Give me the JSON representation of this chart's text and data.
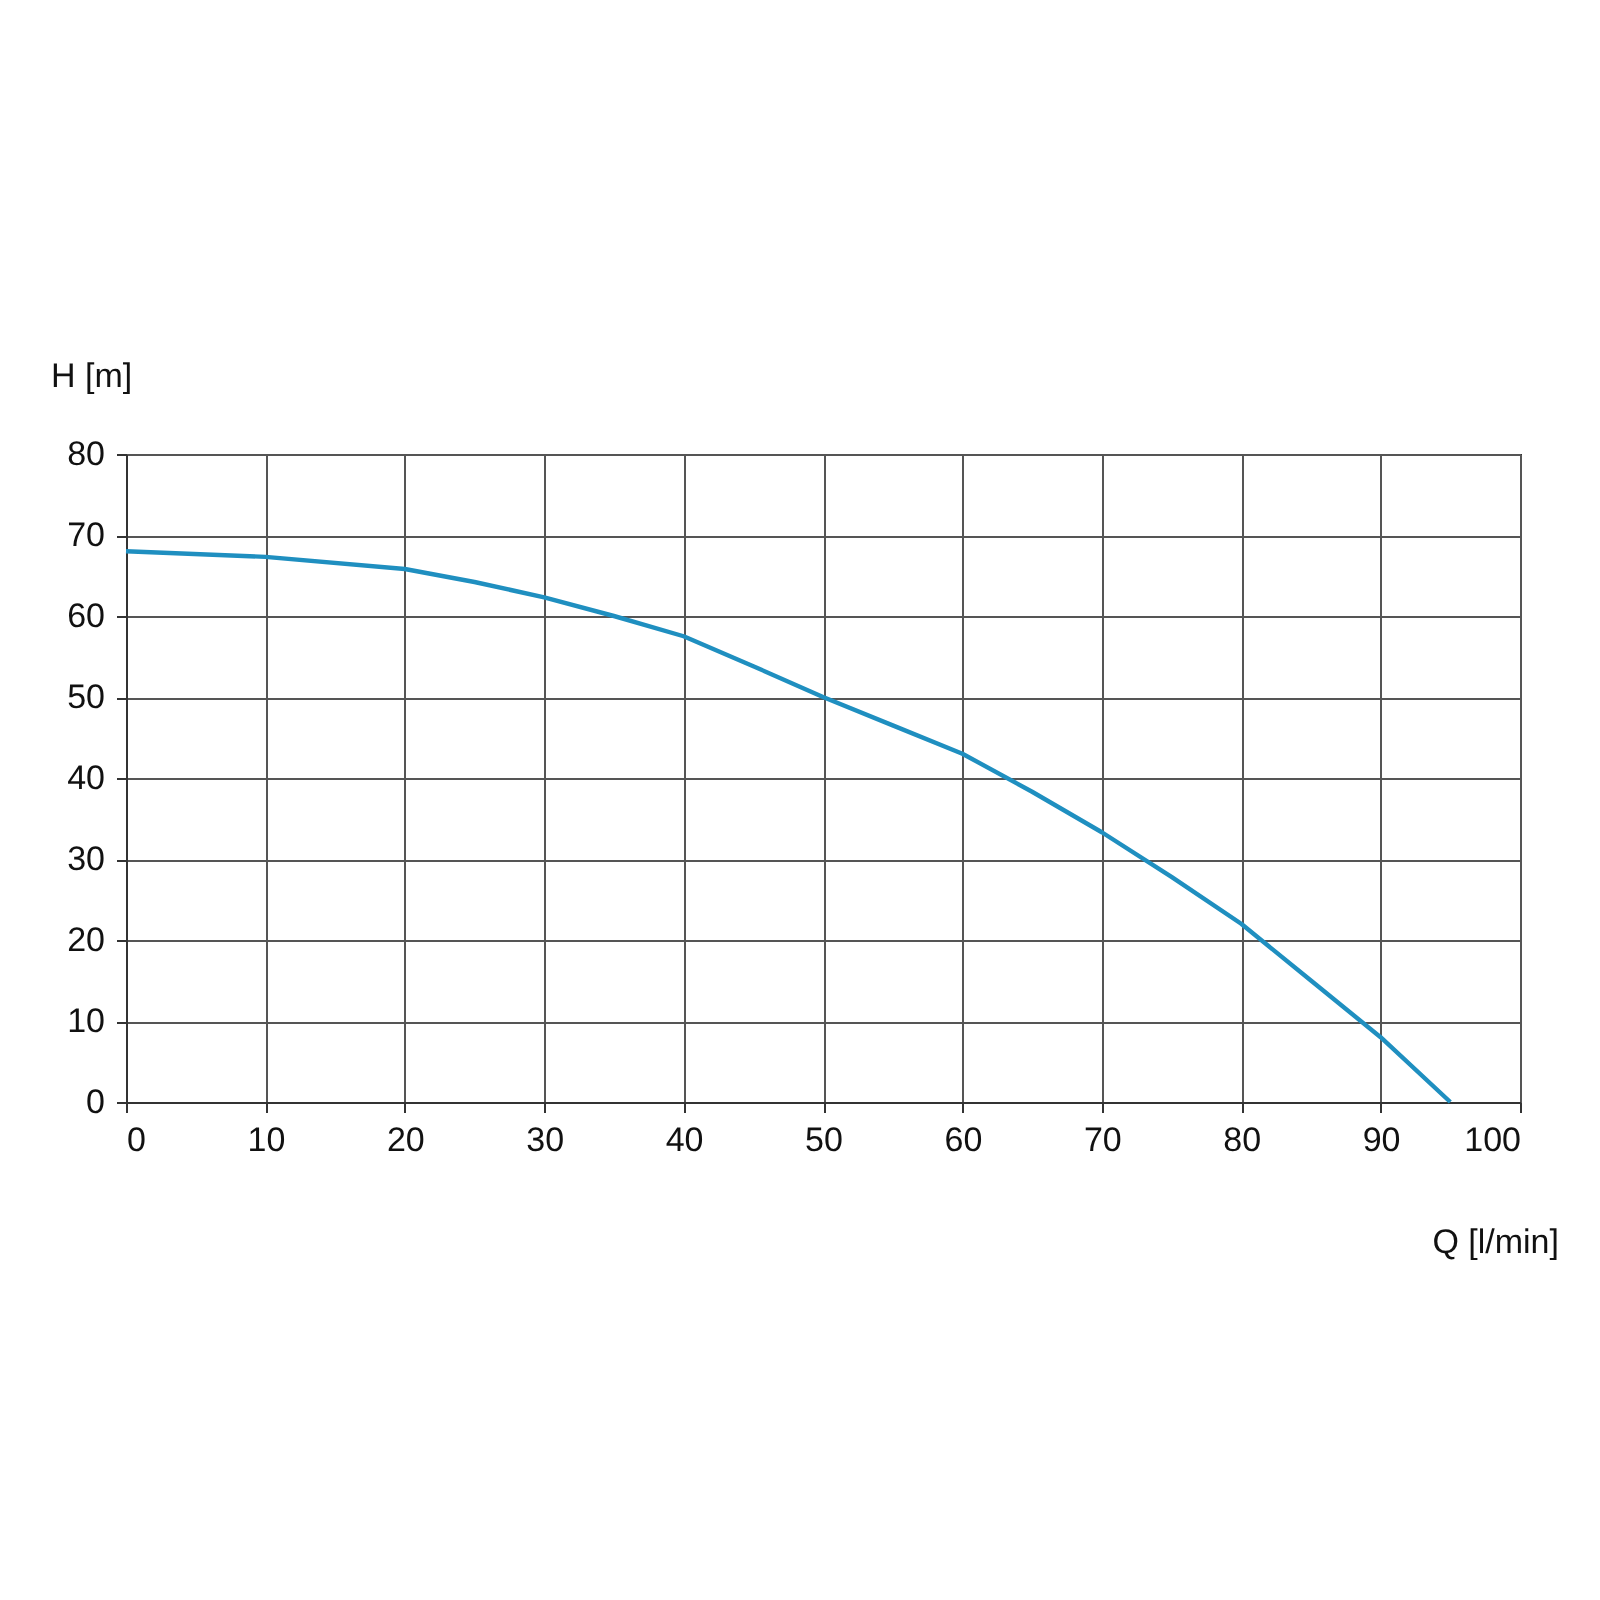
{
  "chart_data": {
    "type": "line",
    "xlabel": "Q [l/min]",
    "ylabel": "H [m]",
    "x": [
      0,
      10,
      20,
      25,
      30,
      35,
      40,
      45,
      50,
      55,
      60,
      65,
      70,
      75,
      80,
      85,
      90,
      95
    ],
    "series": [
      {
        "color": "#1f8fc0",
        "values": [
          68,
          67.3,
          65.8,
          64.2,
          62.3,
          60,
          57.5,
          53.8,
          50,
          46.5,
          43,
          38.3,
          33.3,
          27.8,
          22,
          15,
          8,
          0
        ]
      }
    ],
    "xlim": [
      0,
      100
    ],
    "xticks": [
      0,
      10,
      20,
      30,
      40,
      50,
      60,
      70,
      80,
      90,
      100
    ],
    "ylim": [
      0,
      80
    ],
    "yticks": [
      0,
      10,
      20,
      30,
      40,
      50,
      60,
      70,
      80
    ],
    "grid": true,
    "legend": false,
    "marker": "none",
    "line_style": "solid"
  }
}
